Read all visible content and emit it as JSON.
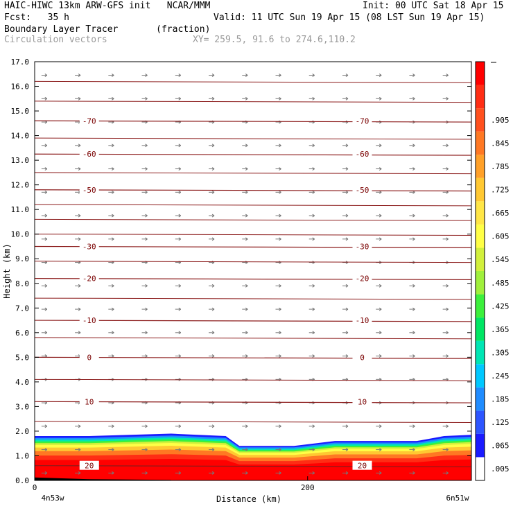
{
  "header": {
    "model_line": "HAIC-HIWC 13km ARW-GFS init   NCAR/MMM",
    "init_line": "Init: 00 UTC Sat 18 Apr 15",
    "fcst_line": "Fcst:   35 h",
    "valid_line": "Valid: 11 UTC Sun 19 Apr 15 (08 LST Sun 19 Apr 15)",
    "field_line": "Boundary Layer Tracer       (fraction)",
    "vector_line": "Circulation vectors",
    "xy_line": "XY= 259.5, 91.6 to 274.6,110.2"
  },
  "chart_data": {
    "type": "heatmap",
    "title": "Boundary Layer Tracer",
    "units": "(fraction)",
    "xlabel": "Distance (km)",
    "ylabel": "Height (km)",
    "xlim": [
      0,
      320
    ],
    "ylim": [
      0,
      17
    ],
    "x_ticks": [
      0,
      200
    ],
    "x_tick_labels": [
      "0",
      "200"
    ],
    "x_end_labels": [
      "4n53w",
      "6n51w"
    ],
    "y_ticks": [
      0,
      1,
      2,
      3,
      4,
      5,
      6,
      7,
      8,
      9,
      10,
      11,
      12,
      13,
      14,
      15,
      16,
      17
    ],
    "y_tick_labels": [
      "0.0",
      "1.0",
      "2.0",
      "3.0",
      "4.0",
      "5.0",
      "6.0",
      "7.0",
      "8.0",
      "9.0",
      "10.0",
      "11.0",
      "12.0",
      "13.0",
      "14.0",
      "15.0",
      "16.0",
      "17.0"
    ],
    "colorbar": {
      "labels": [
        ".005",
        ".065",
        ".125",
        ".185",
        ".245",
        ".305",
        ".365",
        ".425",
        ".485",
        ".545",
        ".605",
        ".665",
        ".725",
        ".785",
        ".845",
        ".905"
      ],
      "colors": [
        "#ffffff",
        "#1a1aff",
        "#2d55ff",
        "#1f8cff",
        "#00c8ff",
        "#00e6b4",
        "#00e664",
        "#3cf03c",
        "#a0f03c",
        "#d2f03c",
        "#ffff46",
        "#ffe646",
        "#ffc832",
        "#ffa028",
        "#ff7823",
        "#ff501e",
        "#ff2d14",
        "#ff0000"
      ]
    },
    "isotherms": {
      "levels": [
        -70,
        -60,
        -50,
        -30,
        -20,
        -10,
        0,
        10,
        20
      ],
      "label_text": [
        "-70",
        "-60",
        "-50",
        "-30",
        "-20",
        "-10",
        "0",
        "10",
        "20"
      ],
      "heights_km": [
        14.6,
        13.25,
        11.8,
        9.5,
        8.2,
        6.5,
        5.0,
        3.2,
        0.6
      ]
    },
    "tracer_top_km": [
      [
        0,
        1.8
      ],
      [
        40,
        1.8
      ],
      [
        100,
        1.9
      ],
      [
        140,
        1.8
      ],
      [
        150,
        1.4
      ],
      [
        190,
        1.4
      ],
      [
        220,
        1.6
      ],
      [
        280,
        1.6
      ],
      [
        300,
        1.8
      ],
      [
        320,
        1.85
      ]
    ]
  }
}
